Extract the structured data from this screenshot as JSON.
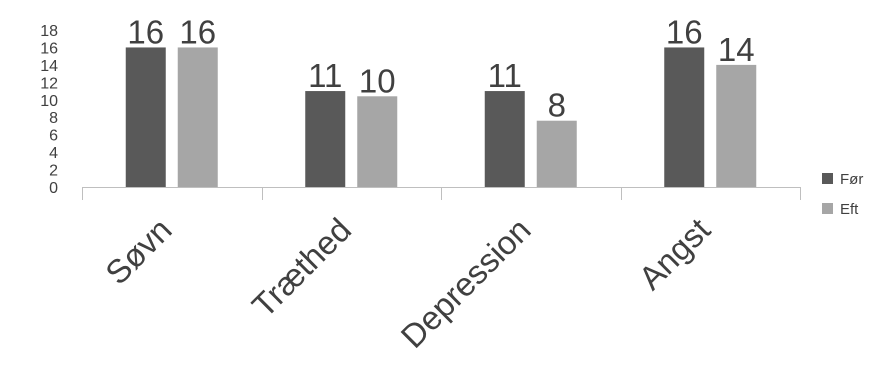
{
  "chart_data": {
    "type": "bar",
    "categories": [
      "Søvn",
      "Træthed",
      "Depression",
      "Angst"
    ],
    "series": [
      {
        "name": "Før",
        "values": [
          16,
          11,
          11,
          16
        ],
        "labels": [
          "16",
          "11",
          "11",
          "16"
        ],
        "color": "#595959"
      },
      {
        "name": "Eft",
        "values": [
          16,
          10.4,
          7.6,
          14
        ],
        "labels": [
          "16",
          "10",
          "8",
          "14"
        ],
        "color": "#a6a6a6"
      }
    ],
    "yticks": [
      0,
      2,
      4,
      6,
      8,
      10,
      12,
      14,
      16,
      18
    ],
    "ylim": [
      0,
      18
    ],
    "title": "",
    "xlabel": "",
    "ylabel": "",
    "grid": false,
    "legend": "right",
    "axis_color": "#bfbfbf",
    "text_color": "#404040"
  }
}
